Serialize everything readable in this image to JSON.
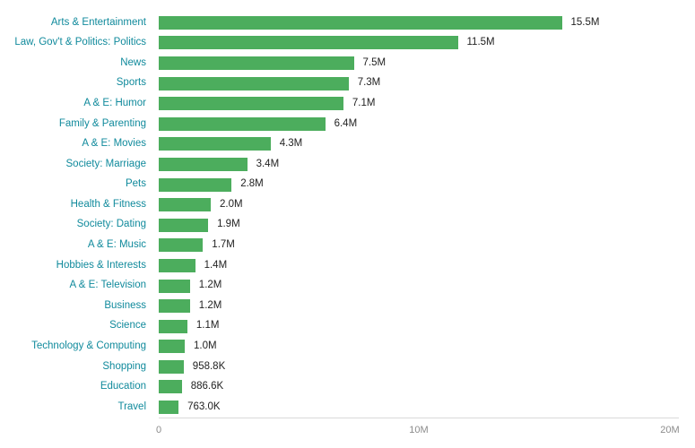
{
  "colors": {
    "bar": "#4cad5d",
    "category_label": "#108a9c",
    "value_label": "#222222",
    "axis_label": "#8c8c8c",
    "axis_line": "#d9d9d9",
    "background": "#ffffff"
  },
  "chart_data": {
    "type": "bar",
    "orientation": "horizontal",
    "title": "",
    "xlabel": "",
    "ylabel": "",
    "grid": false,
    "legend": null,
    "xlim": [
      0,
      20000000
    ],
    "categories": [
      "Arts & Entertainment",
      "Law, Gov't & Politics: Politics",
      "News",
      "Sports",
      "A & E: Humor",
      "Family & Parenting",
      "A & E: Movies",
      "Society: Marriage",
      "Pets",
      "Health & Fitness",
      "Society: Dating",
      "A & E: Music",
      "Hobbies & Interests",
      "A & E: Television",
      "Business",
      "Science",
      "Technology & Computing",
      "Shopping",
      "Education",
      "Travel"
    ],
    "values": [
      15500000,
      11500000,
      7500000,
      7300000,
      7100000,
      6400000,
      4300000,
      3400000,
      2800000,
      2000000,
      1900000,
      1700000,
      1400000,
      1200000,
      1200000,
      1100000,
      1000000,
      958800,
      886600,
      763000
    ],
    "value_labels": [
      "15.5M",
      "11.5M",
      "7.5M",
      "7.3M",
      "7.1M",
      "6.4M",
      "4.3M",
      "3.4M",
      "2.8M",
      "2.0M",
      "1.9M",
      "1.7M",
      "1.4M",
      "1.2M",
      "1.2M",
      "1.1M",
      "1.0M",
      "958.8K",
      "886.6K",
      "763.0K"
    ],
    "x_ticks": [
      {
        "value": 0,
        "label": "0"
      },
      {
        "value": 10000000,
        "label": "10M"
      },
      {
        "value": 20000000,
        "label": "20M"
      }
    ]
  }
}
